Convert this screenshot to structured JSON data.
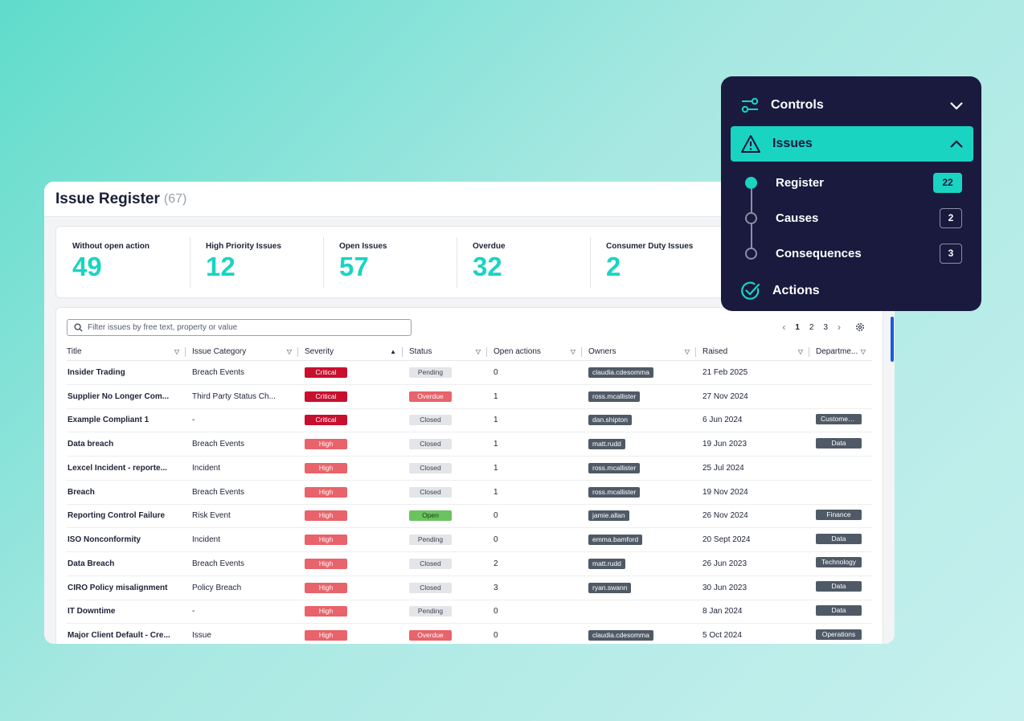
{
  "header": {
    "title": "Issue Register",
    "count": "(67)"
  },
  "kpis": [
    {
      "label": "Without open action",
      "value": "49"
    },
    {
      "label": "High Priority Issues",
      "value": "12"
    },
    {
      "label": "Open Issues",
      "value": "57"
    },
    {
      "label": "Overdue",
      "value": "32"
    },
    {
      "label": "Consumer Duty Issues",
      "value": "2"
    }
  ],
  "search": {
    "placeholder": "Filter issues by free text, property or value"
  },
  "pager": {
    "pages": [
      "1",
      "2",
      "3"
    ],
    "current": "1"
  },
  "columns": [
    "Title",
    "Issue Category",
    "Severity",
    "Status",
    "Open actions",
    "Owners",
    "Raised",
    "Departme..."
  ],
  "rows": [
    {
      "title": "Insider Trading",
      "category": "Breach Events",
      "severity": "Critical",
      "status": "Pending",
      "open": "0",
      "owner": "claudia.cdesomma",
      "raised": "21 Feb 2025",
      "dept": ""
    },
    {
      "title": "Supplier No Longer Com...",
      "category": "Third Party Status Ch...",
      "severity": "Critical",
      "status": "Overdue",
      "open": "1",
      "owner": "ross.mcallister",
      "raised": "27 Nov 2024",
      "dept": ""
    },
    {
      "title": "Example Compliant 1",
      "category": "-",
      "severity": "Critical",
      "status": "Closed",
      "open": "1",
      "owner": "dan.shipton",
      "raised": "6 Jun 2024",
      "dept": "Customer ..."
    },
    {
      "title": "Data breach",
      "category": "Breach Events",
      "severity": "High",
      "status": "Closed",
      "open": "1",
      "owner": "matt.rudd",
      "raised": "19 Jun 2023",
      "dept": "Data"
    },
    {
      "title": "Lexcel Incident - reporte...",
      "category": "Incident",
      "severity": "High",
      "status": "Closed",
      "open": "1",
      "owner": "ross.mcallister",
      "raised": "25 Jul 2024",
      "dept": ""
    },
    {
      "title": "Breach",
      "category": "Breach Events",
      "severity": "High",
      "status": "Closed",
      "open": "1",
      "owner": "ross.mcallister",
      "raised": "19 Nov 2024",
      "dept": ""
    },
    {
      "title": "Reporting Control Failure",
      "category": "Risk Event",
      "severity": "High",
      "status": "Open",
      "open": "0",
      "owner": "jamie.allan",
      "raised": "26 Nov 2024",
      "dept": "Finance"
    },
    {
      "title": "ISO Nonconformity",
      "category": "Incident",
      "severity": "High",
      "status": "Pending",
      "open": "0",
      "owner": "emma.bamford",
      "raised": "20 Sept 2024",
      "dept": "Data"
    },
    {
      "title": "Data Breach",
      "category": "Breach Events",
      "severity": "High",
      "status": "Closed",
      "open": "2",
      "owner": "matt.rudd",
      "raised": "26 Jun 2023",
      "dept": "Technology"
    },
    {
      "title": "CIRO Policy misalignment",
      "category": "Policy Breach",
      "severity": "High",
      "status": "Closed",
      "open": "3",
      "owner": "ryan.swann",
      "raised": "30 Jun 2023",
      "dept": "Data"
    },
    {
      "title": "IT Downtime",
      "category": "-",
      "severity": "High",
      "status": "Pending",
      "open": "0",
      "owner": "",
      "raised": "8 Jan 2024",
      "dept": "Data"
    },
    {
      "title": "Major Client Default - Cre...",
      "category": "Issue",
      "severity": "High",
      "status": "Overdue",
      "open": "0",
      "owner": "claudia.cdesomma",
      "raised": "5 Oct 2024",
      "dept": "Operations"
    }
  ],
  "nav": {
    "controls": "Controls",
    "issues": "Issues",
    "register": {
      "label": "Register",
      "count": "22"
    },
    "causes": {
      "label": "Causes",
      "count": "2"
    },
    "consequences": {
      "label": "Consequences",
      "count": "3"
    },
    "actions": "Actions"
  },
  "colors": {
    "accent": "#1ad4c2",
    "critical": "#c8102e",
    "high": "#e8636a",
    "open": "#6bc25f",
    "nav_bg": "#1a1a3f"
  }
}
